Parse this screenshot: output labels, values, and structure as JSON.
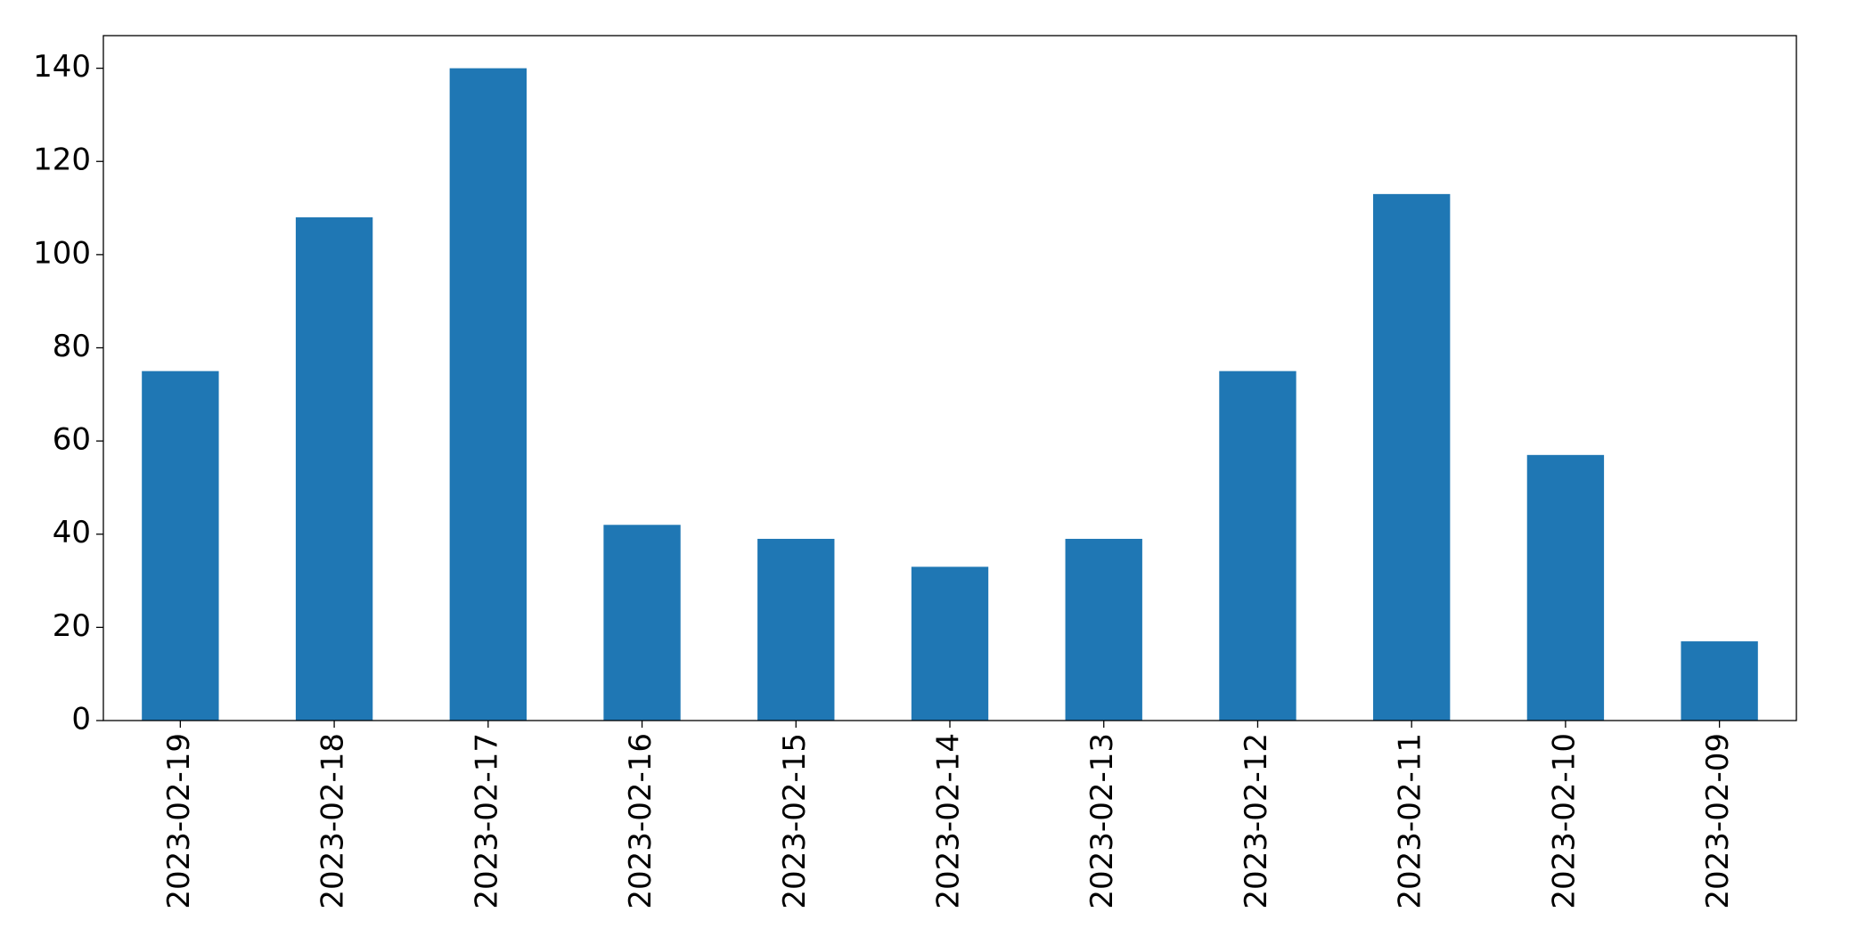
{
  "chart_data": {
    "type": "bar",
    "categories": [
      "2023-02-19",
      "2023-02-18",
      "2023-02-17",
      "2023-02-16",
      "2023-02-15",
      "2023-02-14",
      "2023-02-13",
      "2023-02-12",
      "2023-02-11",
      "2023-02-10",
      "2023-02-09"
    ],
    "values": [
      75,
      108,
      140,
      42,
      39,
      33,
      39,
      75,
      113,
      57,
      17
    ],
    "color": "#1f77b4",
    "ylim": [
      0,
      147
    ],
    "yticks": [
      0,
      20,
      40,
      60,
      80,
      100,
      120,
      140
    ],
    "grid": false
  }
}
